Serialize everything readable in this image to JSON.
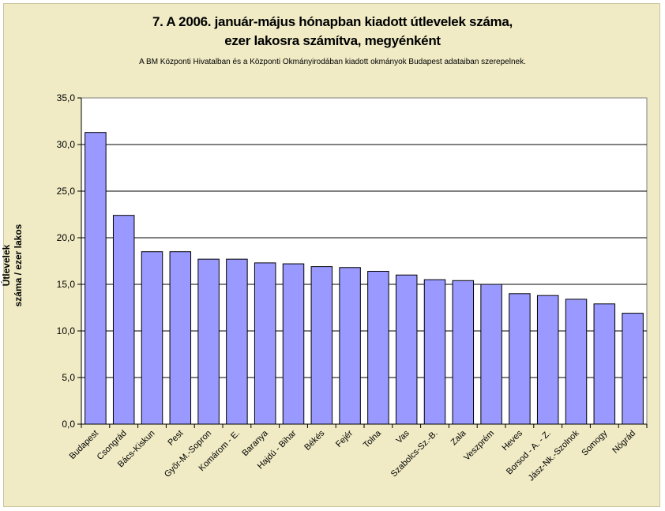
{
  "chart_data": {
    "type": "bar",
    "title_line_1": "7. A 2006. január-május hónapban kiadott útlevelek száma,",
    "title_line_2": "ezer lakosra számítva, megyénként",
    "subtitle": "A BM Központi Hivatalban és a Központi Okmányirodában kiadott okmányok Budapest adataiban szerepelnek.",
    "ylabel_line_1": "Útlevelek",
    "ylabel_line_2": "száma / ezer lakos",
    "ylim": [
      0,
      35
    ],
    "yticks": [
      "0,0",
      "5,0",
      "10,0",
      "15,0",
      "20,0",
      "25,0",
      "30,0",
      "35,0"
    ],
    "grid": true,
    "categories": [
      "Budapest",
      "Csongrád",
      "Bács-Kiskun",
      "Pest",
      "Győr-M.-Sopron",
      "Komárom - E.",
      "Baranya",
      "Hajdú - Bihar",
      "Békés",
      "Fejér",
      "Tolna",
      "Vas",
      "Szabolcs-Sz.-B.",
      "Zala",
      "Veszprém",
      "Heves",
      "Borsod - A. - Z.",
      "Jász-Nk.-Szolnok",
      "Somogy",
      "Nógrád"
    ],
    "values": [
      31.3,
      22.4,
      18.5,
      18.5,
      17.7,
      17.7,
      17.3,
      17.2,
      16.9,
      16.8,
      16.4,
      16.0,
      15.5,
      15.4,
      15.0,
      14.0,
      13.8,
      13.4,
      12.9,
      11.9
    ],
    "bar_color": "#9999ff"
  }
}
